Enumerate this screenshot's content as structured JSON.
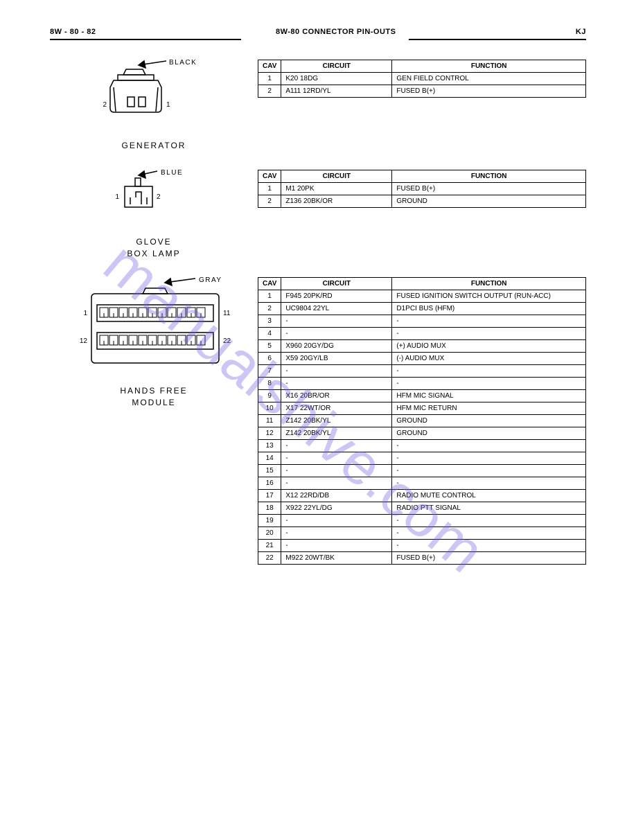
{
  "header": {
    "left": "8W - 80 - 82",
    "center": "8W-80 CONNECTOR PIN-OUTS",
    "right": "KJ"
  },
  "watermark": "manualshive.com",
  "sections": [
    {
      "id": "generator",
      "diagram": {
        "type": "connector2",
        "color_label": "BLACK",
        "pin_left": "2",
        "pin_right": "1"
      },
      "label": "GENERATOR",
      "columns": [
        "CAV",
        "CIRCUIT",
        "FUNCTION"
      ],
      "rows": [
        [
          "1",
          "K20 18DG",
          "GEN FIELD CONTROL"
        ],
        [
          "2",
          "A111 12RD/YL",
          "FUSED B(+)"
        ]
      ]
    },
    {
      "id": "glovebox",
      "diagram": {
        "type": "connector2small",
        "color_label": "BLUE",
        "pin_left": "1",
        "pin_right": "2"
      },
      "label": "GLOVE\nBOX LAMP",
      "columns": [
        "CAV",
        "CIRCUIT",
        "FUNCTION"
      ],
      "rows": [
        [
          "1",
          "M1 20PK",
          "FUSED B(+)"
        ],
        [
          "2",
          "Z136 20BK/OR",
          "GROUND"
        ]
      ]
    },
    {
      "id": "handsfree",
      "diagram": {
        "type": "connector22",
        "color_label": "GRAY",
        "top_left": "1",
        "top_right": "11",
        "bot_left": "12",
        "bot_right": "22"
      },
      "label": "HANDS FREE\nMODULE",
      "columns": [
        "CAV",
        "CIRCUIT",
        "FUNCTION"
      ],
      "rows": [
        [
          "1",
          "F945 20PK/RD",
          "FUSED IGNITION SWITCH OUTPUT (RUN-ACC)"
        ],
        [
          "2",
          "UC9804 22YL",
          "D1PCI BUS (HFM)"
        ],
        [
          "3",
          "-",
          "-"
        ],
        [
          "4",
          "-",
          "-"
        ],
        [
          "5",
          "X960 20GY/DG",
          "(+) AUDIO MUX"
        ],
        [
          "6",
          "X59 20GY/LB",
          "(-) AUDIO MUX"
        ],
        [
          "7",
          "-",
          "-"
        ],
        [
          "8",
          "-",
          "-"
        ],
        [
          "9",
          "X16 20BR/OR",
          "HFM MIC SIGNAL"
        ],
        [
          "10",
          "X17 22WT/OR",
          "HFM MIC RETURN"
        ],
        [
          "11",
          "Z142 20BK/YL",
          "GROUND"
        ],
        [
          "12",
          "Z142 20BK/YL",
          "GROUND"
        ],
        [
          "13",
          "-",
          "-"
        ],
        [
          "14",
          "-",
          "-"
        ],
        [
          "15",
          "-",
          "-"
        ],
        [
          "16",
          "-",
          "-"
        ],
        [
          "17",
          "X12 22RD/DB",
          "RADIO MUTE CONTROL"
        ],
        [
          "18",
          "X922 22YL/DG",
          "RADIO PTT SIGNAL"
        ],
        [
          "19",
          "-",
          "-"
        ],
        [
          "20",
          "-",
          "-"
        ],
        [
          "21",
          "-",
          "-"
        ],
        [
          "22",
          "M922 20WT/BK",
          "FUSED B(+)"
        ]
      ]
    }
  ]
}
